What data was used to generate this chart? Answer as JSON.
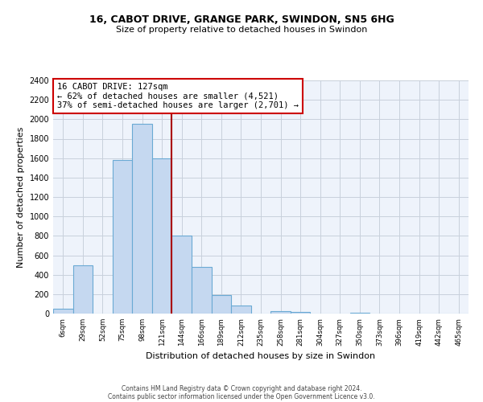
{
  "title1": "16, CABOT DRIVE, GRANGE PARK, SWINDON, SN5 6HG",
  "title2": "Size of property relative to detached houses in Swindon",
  "xlabel": "Distribution of detached houses by size in Swindon",
  "ylabel": "Number of detached properties",
  "bar_categories": [
    "6sqm",
    "29sqm",
    "52sqm",
    "75sqm",
    "98sqm",
    "121sqm",
    "144sqm",
    "166sqm",
    "189sqm",
    "212sqm",
    "235sqm",
    "258sqm",
    "281sqm",
    "304sqm",
    "327sqm",
    "350sqm",
    "373sqm",
    "396sqm",
    "419sqm",
    "442sqm",
    "465sqm"
  ],
  "bar_values": [
    50,
    500,
    0,
    1580,
    1950,
    1600,
    800,
    480,
    190,
    80,
    0,
    25,
    15,
    0,
    0,
    10,
    0,
    0,
    0,
    0,
    0
  ],
  "bar_color": "#c5d8f0",
  "bar_edge_color": "#6aaad4",
  "vline_color": "#aa0000",
  "vline_index": 5,
  "annotation_box_text_line1": "16 CABOT DRIVE: 127sqm",
  "annotation_box_text_line2": "← 62% of detached houses are smaller (4,521)",
  "annotation_box_text_line3": "37% of semi-detached houses are larger (2,701) →",
  "ylim": [
    0,
    2400
  ],
  "yticks": [
    0,
    200,
    400,
    600,
    800,
    1000,
    1200,
    1400,
    1600,
    1800,
    2000,
    2200,
    2400
  ],
  "plot_bg_color": "#eef3fb",
  "fig_bg_color": "#ffffff",
  "grid_color": "#c8d0dc",
  "footer1": "Contains HM Land Registry data © Crown copyright and database right 2024.",
  "footer2": "Contains public sector information licensed under the Open Government Licence v3.0."
}
